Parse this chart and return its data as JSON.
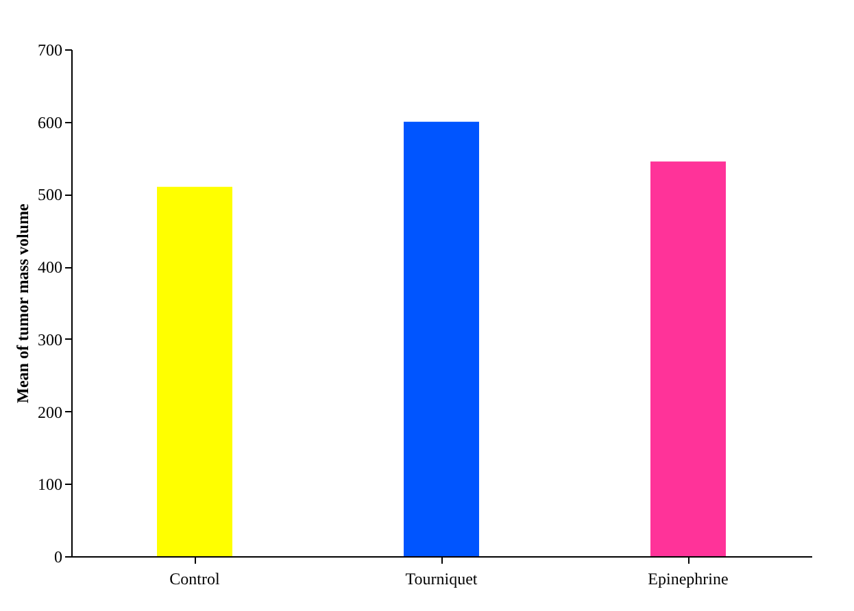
{
  "chart_data": {
    "type": "bar",
    "ylabel": "Mean of tumor mass volume",
    "categories": [
      "Control",
      "Tourniquet",
      "Epinephrine"
    ],
    "values": [
      510,
      600,
      545
    ],
    "colors": [
      "#ffff00",
      "#0055ff",
      "#ff3399"
    ],
    "ylim": [
      0,
      700
    ],
    "yticks": [
      0,
      100,
      200,
      300,
      400,
      500,
      600,
      700
    ],
    "grid": false,
    "legend": false
  }
}
